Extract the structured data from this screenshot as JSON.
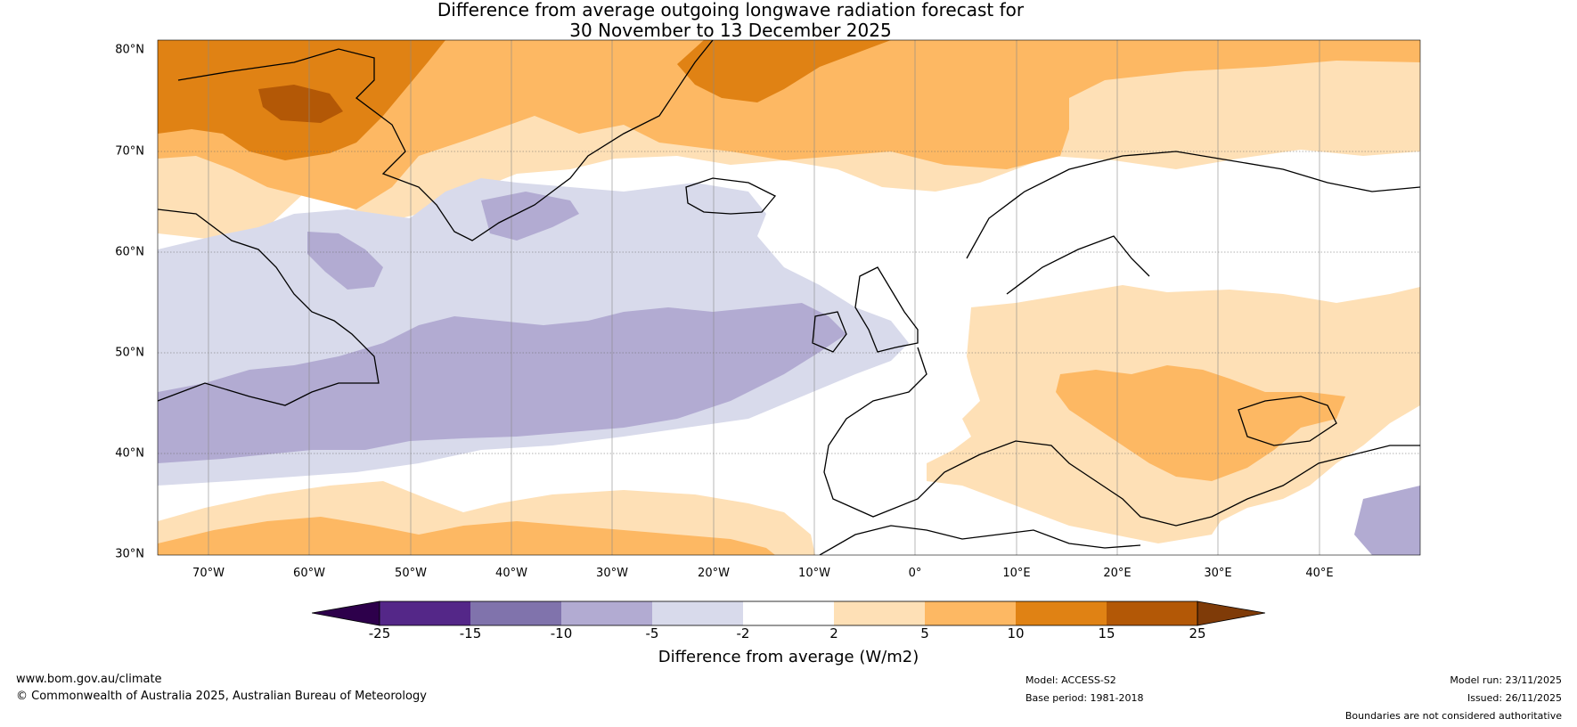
{
  "title": {
    "line1": "Difference from average outgoing longwave radiation forecast for",
    "line2": "30 November to 13 December 2025"
  },
  "map": {
    "lat_labels": [
      "80°N",
      "70°N",
      "60°N",
      "50°N",
      "40°N",
      "30°N"
    ],
    "lon_labels": [
      "70°W",
      "60°W",
      "50°W",
      "40°W",
      "30°W",
      "20°W",
      "10°W",
      "0°",
      "10°E",
      "20°E",
      "30°E",
      "40°E"
    ],
    "lat_range": [
      30,
      81
    ],
    "lon_range": [
      -75,
      50
    ]
  },
  "colorbar": {
    "ticks": [
      "-25",
      "-15",
      "-10",
      "-5",
      "-2",
      "2",
      "5",
      "10",
      "15",
      "25"
    ],
    "colors": [
      "#2d004b",
      "#542788",
      "#8073ac",
      "#b2abd2",
      "#d8daeb",
      "#ffffff",
      "#fee0b6",
      "#fdb863",
      "#e08214",
      "#b35806",
      "#7f3b08"
    ],
    "label": "Difference from average (W/m2)"
  },
  "footer": {
    "website": "www.bom.gov.au/climate",
    "copyright": "© Commonwealth of Australia 2025, Australian Bureau of Meteorology",
    "model": "Model: ACCESS-S2",
    "base_period": "Base period: 1981-2018",
    "model_run": "Model run: 23/11/2025",
    "issued": "Issued: 26/11/2025",
    "disclaimer": "Boundaries are not considered authoritative"
  }
}
